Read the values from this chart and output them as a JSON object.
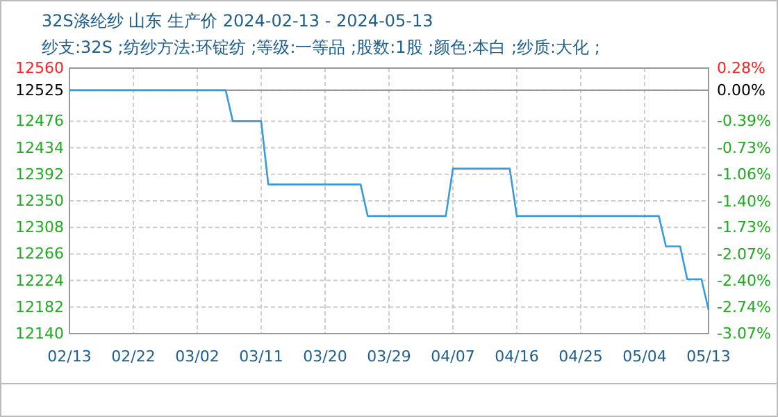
{
  "chart_data": {
    "type": "line",
    "title": "32S涤纶纱 山东 生产价 2024-02-13 - 2024-05-13",
    "subtitle": "纱支:32S ;纺纱方法:环锭纺 ;等级:一等品 ;股数:1股 ;颜色:本白 ;纱质:大化 ;",
    "x": [
      "2024-02-13",
      "2024-03-06",
      "2024-03-07",
      "2024-03-11",
      "2024-03-12",
      "2024-03-25",
      "2024-03-26",
      "2024-04-06",
      "2024-04-07",
      "2024-04-15",
      "2024-04-16",
      "2024-05-06",
      "2024-05-07",
      "2024-05-09",
      "2024-05-10",
      "2024-05-12",
      "2024-05-13"
    ],
    "series": [
      {
        "color": "#3a9ad9",
        "values": [
          12525,
          12525,
          12476,
          12476,
          12376,
          12376,
          12326,
          12326,
          12401,
          12401,
          12326,
          12326,
          12278,
          12278,
          12226,
          12226,
          12178
        ]
      }
    ],
    "xlim": [
      "2024-02-13",
      "2024-05-13"
    ],
    "xticks": [
      {
        "value": "2024-02-13",
        "label": "02/13"
      },
      {
        "value": "2024-02-22",
        "label": "02/22"
      },
      {
        "value": "2024-03-02",
        "label": "03/02"
      },
      {
        "value": "2024-03-11",
        "label": "03/11"
      },
      {
        "value": "2024-03-20",
        "label": "03/20"
      },
      {
        "value": "2024-03-29",
        "label": "03/29"
      },
      {
        "value": "2024-04-07",
        "label": "04/07"
      },
      {
        "value": "2024-04-16",
        "label": "04/16"
      },
      {
        "value": "2024-04-25",
        "label": "04/25"
      },
      {
        "value": "2024-05-04",
        "label": "05/04"
      },
      {
        "value": "2024-05-13",
        "label": "05/13"
      }
    ],
    "ylim": [
      12140,
      12560
    ],
    "yticks": [
      12140,
      12182,
      12224,
      12266,
      12308,
      12350,
      12392,
      12434,
      12476,
      12525,
      12560
    ],
    "y2lim": [
      -3.07,
      0.28
    ],
    "y2ticks": [
      {
        "value": -3.07,
        "label": "-3.07%"
      },
      {
        "value": -2.74,
        "label": "-2.74%"
      },
      {
        "value": -2.4,
        "label": "-2.40%"
      },
      {
        "value": -2.07,
        "label": "-2.07%"
      },
      {
        "value": -1.73,
        "label": "-1.73%"
      },
      {
        "value": -1.4,
        "label": "-1.40%"
      },
      {
        "value": -1.06,
        "label": "-1.06%"
      },
      {
        "value": -0.73,
        "label": "-0.73%"
      },
      {
        "value": -0.39,
        "label": "-0.39%"
      },
      {
        "value": 0,
        "label": "0.00%"
      },
      {
        "value": 0.28,
        "label": "0.28%"
      }
    ],
    "ref_lines": [
      {
        "axis": "y",
        "value": 12525,
        "color": "#999999"
      }
    ],
    "grid": true,
    "marker": "none",
    "line_style": "solid"
  }
}
